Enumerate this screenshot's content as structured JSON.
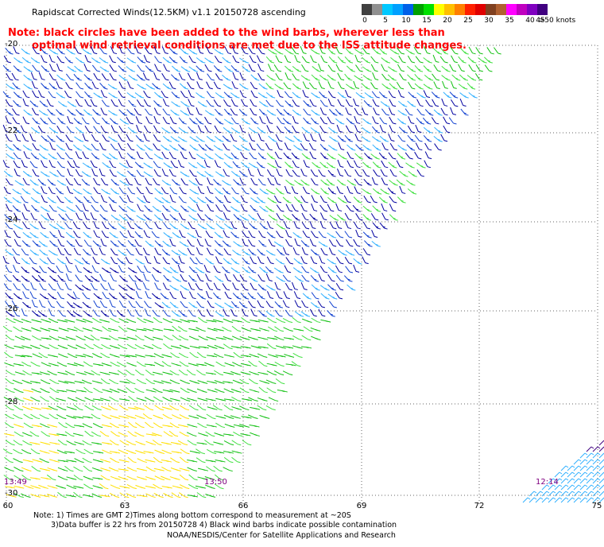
{
  "title": "Rapidscat Corrected Winds(12.5KM) v1.1 20150728 ascending",
  "note_line1": "Note: black circles have been added to the wind barbs, wherever less than",
  "note_line2": "optimal wind retrieval conditions are met due to the ISS attitude changes.",
  "legend": {
    "colors": [
      "#404040",
      "#909090",
      "#00c8ff",
      "#00a0ff",
      "#0060e8",
      "#00a000",
      "#00e000",
      "#ffff00",
      "#ffc000",
      "#ff8000",
      "#ff2000",
      "#e00000",
      "#804020",
      "#b06030",
      "#ff00ff",
      "#c000c0",
      "#8000c0",
      "#400080"
    ],
    "labels": [
      "0",
      "5",
      "10",
      "15",
      "20",
      "25",
      "30",
      "35",
      "40",
      "45",
      ">50 knots"
    ],
    "label_steps": [
      0,
      2,
      4,
      6,
      8,
      10,
      12,
      14,
      16,
      17,
      18
    ]
  },
  "lat_labels": [
    "-20",
    "-22",
    "-24",
    "-26",
    "-28",
    "-30"
  ],
  "lon_labels": [
    "60",
    "63",
    "66",
    "69",
    "72",
    "75"
  ],
  "time_labels": [
    "13:49",
    "13:50",
    "12:14"
  ],
  "footer_line1": "Note: 1) Times are GMT 2)Times along bottom correspond to measurement at ~20S",
  "footer_line2": "3)Data buffer is 22 hrs from 20150728 4) Black wind barbs indicate possible contamination",
  "footer_line3": "NOAA/NESDIS/Center for Satellite Applications and Research",
  "barb_colors": {
    "blue": "#1040d0",
    "light_blue": "#30b0ff",
    "navy": "#0000a0",
    "green": "#10c010",
    "light_green": "#40e040",
    "yellow": "#ffe000",
    "purple": "#400080"
  }
}
